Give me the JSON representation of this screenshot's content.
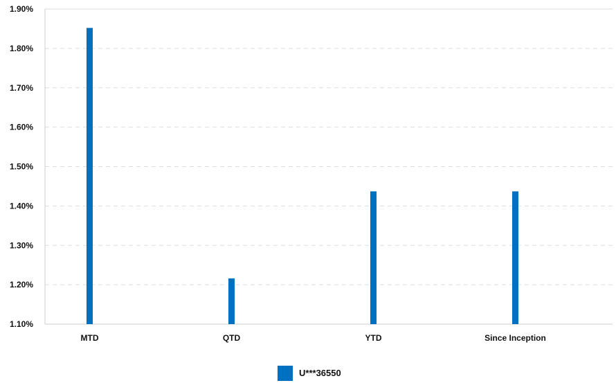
{
  "chart_data": {
    "type": "bar",
    "categories": [
      "MTD",
      "QTD",
      "YTD",
      "Since Inception"
    ],
    "series": [
      {
        "name": "U***36550",
        "values": [
          1.852,
          1.216,
          1.437,
          1.437
        ],
        "color": "#0070C0"
      }
    ],
    "ylim": [
      1.1,
      1.9
    ],
    "yticks": [
      1.1,
      1.2,
      1.3,
      1.4,
      1.5,
      1.6,
      1.7,
      1.8,
      1.9
    ],
    "ytick_labels": [
      "1.10%",
      "1.20%",
      "1.30%",
      "1.40%",
      "1.50%",
      "1.60%",
      "1.70%",
      "1.80%",
      "1.90%"
    ],
    "grid": true,
    "legend": "bottom-center",
    "colors": {
      "bar": "#0070C0",
      "grid": "#dddddd",
      "axis": "#cccccc",
      "text": "#111111"
    }
  }
}
